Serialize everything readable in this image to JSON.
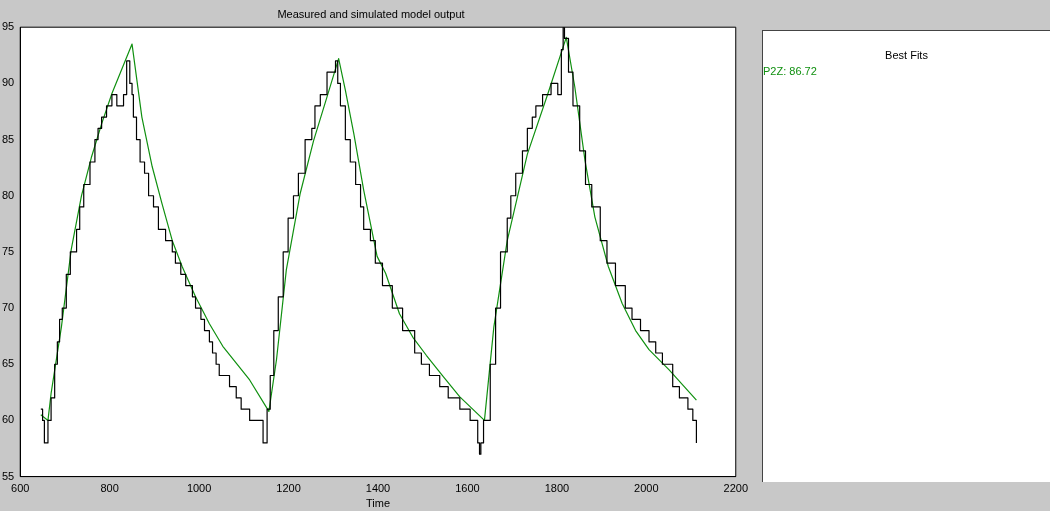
{
  "chart_data": {
    "type": "line",
    "title": "Measured and simulated model output",
    "xlabel": "Time",
    "legend_title": "Best Fits",
    "legend": "right",
    "grid": false,
    "marker": "none",
    "xlim": [
      600,
      2200
    ],
    "xticks": [
      600,
      800,
      1000,
      1200,
      1400,
      1600,
      1800,
      2000,
      2200
    ],
    "ylim": [
      55,
      95
    ],
    "yticks": [
      55,
      60,
      65,
      70,
      75,
      80,
      85,
      90,
      95
    ],
    "series": [
      {
        "type": "step",
        "color": "#000000",
        "x": [
          646,
          650,
          654,
          662,
          669,
          677,
          683,
          688,
          694,
          703,
          712,
          726,
          733,
          742,
          756,
          767,
          774,
          782,
          793,
          805,
          816,
          831,
          838,
          845,
          850,
          853,
          860,
          868,
          878,
          887,
          898,
          909,
          925,
          940,
          947,
          959,
          970,
          985,
          992,
          1004,
          1012,
          1023,
          1030,
          1038,
          1045,
          1068,
          1083,
          1094,
          1113,
          1143,
          1152,
          1159,
          1167,
          1177,
          1188,
          1199,
          1211,
          1222,
          1237,
          1252,
          1259,
          1271,
          1286,
          1305,
          1310,
          1316,
          1327,
          1338,
          1350,
          1361,
          1368,
          1383,
          1394,
          1410,
          1432,
          1455,
          1482,
          1497,
          1515,
          1538,
          1557,
          1583,
          1606,
          1623,
          1627,
          1630,
          1636,
          1651,
          1663,
          1674,
          1689,
          1697,
          1708,
          1723,
          1734,
          1745,
          1753,
          1768,
          1787,
          1802,
          1810,
          1814,
          1817,
          1826,
          1836,
          1851,
          1864,
          1878,
          1897,
          1912,
          1931,
          1953,
          1968,
          1987,
          2006,
          2021,
          2036,
          2059,
          2074,
          2093,
          2104,
          2112
        ],
        "values": [
          61,
          60,
          58,
          60,
          62,
          65,
          67,
          69,
          70,
          73,
          75,
          77,
          79,
          81,
          83,
          85,
          86,
          87,
          88,
          89,
          88,
          89,
          92,
          90,
          89,
          87,
          85,
          83,
          82,
          80,
          79,
          77,
          76,
          75,
          74,
          73,
          72,
          71,
          70,
          69,
          68,
          67,
          66,
          65,
          64,
          63,
          62,
          61,
          60,
          58,
          61,
          64,
          68,
          71,
          75,
          78,
          80,
          82,
          85,
          86,
          88,
          89,
          91,
          92,
          90,
          88,
          85,
          83,
          81,
          79,
          77,
          76,
          74,
          72,
          70,
          68,
          66,
          65,
          64,
          63,
          62,
          61,
          60,
          58,
          57,
          58,
          60,
          65,
          70,
          75,
          78,
          80,
          82,
          84,
          86,
          87,
          88,
          89,
          90,
          89,
          93,
          95,
          94,
          91,
          88,
          84,
          81,
          79,
          76,
          74,
          72,
          70,
          69,
          68,
          67,
          66,
          65,
          63,
          62,
          61,
          60,
          58
        ]
      },
      {
        "name": "P2Z: 86.72",
        "color": "#109010",
        "x": [
          646,
          662,
          669,
          692,
          714,
          737,
          759,
          782,
          805,
          850,
          872,
          895,
          917,
          940,
          962,
          992,
          1023,
          1053,
          1083,
          1113,
          1156,
          1173,
          1195,
          1226,
          1256,
          1286,
          1312,
          1327,
          1346,
          1368,
          1398,
          1417,
          1448,
          1478,
          1508,
          1546,
          1583,
          1638,
          1659,
          1689,
          1734,
          1780,
          1821,
          1840,
          1863,
          1885,
          1915,
          1946,
          1976,
          2006,
          2051,
          2112
        ],
        "values": [
          60.5,
          60,
          62.4,
          68.3,
          75.2,
          80,
          83.4,
          86.4,
          89.1,
          93.5,
          87,
          82.6,
          79.3,
          76,
          73.7,
          71,
          68.6,
          66.6,
          65.1,
          63.6,
          60.8,
          65.4,
          73.4,
          80.2,
          84.9,
          88.8,
          92.2,
          89.4,
          85.5,
          80.5,
          74.6,
          73.1,
          69.5,
          67.4,
          65.8,
          63.9,
          62.1,
          60,
          68.3,
          76,
          83.7,
          89.1,
          94.1,
          89.7,
          83.1,
          78.1,
          73.7,
          70.4,
          68,
          66.3,
          64.5,
          61.8
        ]
      }
    ]
  }
}
